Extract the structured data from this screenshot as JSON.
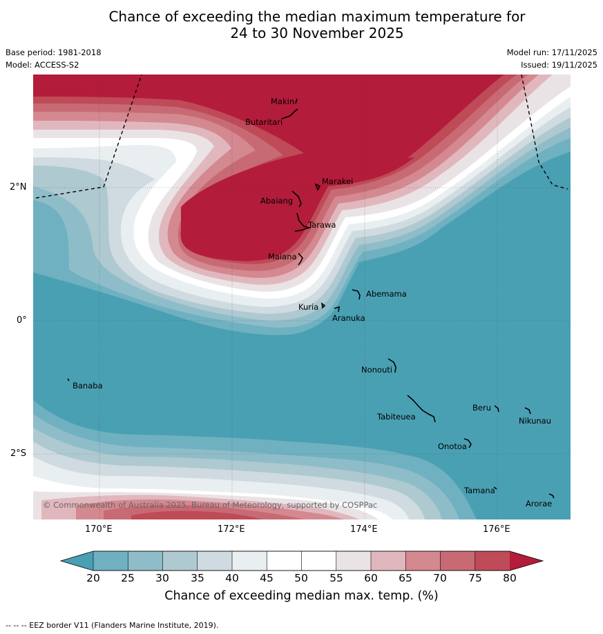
{
  "title_line1": "Chance of exceeding the median maximum temperature for",
  "title_line2": "24 to 30 November 2025",
  "base_period": "Base period: 1981-2018",
  "model": "Model: ACCESS-S2",
  "model_run": "Model run: 17/11/2025",
  "issued": "Issued: 19/11/2025",
  "copyright": "© Commonwealth of Australia 2025, Bureau of Meteorology, supported by COSPPac",
  "lat_ticks": [
    "2°N",
    "0°",
    "2°S"
  ],
  "lon_ticks": [
    "170°E",
    "172°E",
    "174°E",
    "176°E"
  ],
  "places": [
    "Makin",
    "Butaritari",
    "Marakei",
    "Abaiang",
    "Tarawa",
    "Maiana",
    "Abemama",
    "Kuria",
    "Aranuka",
    "Nonouti",
    "Banaba",
    "Beru",
    "Tabiteuea",
    "Nikunau",
    "Onotoa",
    "Tamana",
    "Arorae"
  ],
  "colorbar": {
    "labels": [
      "20",
      "25",
      "30",
      "35",
      "40",
      "45",
      "50",
      "55",
      "60",
      "65",
      "70",
      "75",
      "80"
    ],
    "colors": [
      "#4aa0b3",
      "#6fb1c0",
      "#8ebdc9",
      "#afc9d1",
      "#cfdbe0",
      "#e9eef1",
      "#ffffff",
      "#ffffff",
      "#eae3e6",
      "#e1b7be",
      "#d4888f",
      "#c86a74",
      "#bf4a58",
      "#b31c3a"
    ],
    "title": "Chance of exceeding median max. temp. (%)"
  },
  "footer": "--  --  -- EEZ border V11 (Flanders Marine Institute, 2019)."
}
